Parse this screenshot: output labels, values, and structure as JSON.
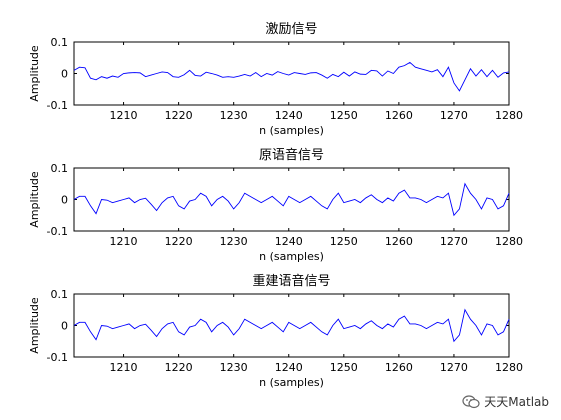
{
  "watermark": {
    "text": "天天Matlab",
    "icon": "wechat-icon"
  },
  "chart_data": [
    {
      "type": "line",
      "title": "激励信号",
      "xlabel": "n (samples)",
      "ylabel": "Amplitude",
      "xlim": [
        1201,
        1280
      ],
      "ylim": [
        -0.1,
        0.1
      ],
      "xticks": [
        1210,
        1220,
        1230,
        1240,
        1250,
        1260,
        1270,
        1280
      ],
      "xtick_labels": [
        "1210",
        "1220",
        "1230",
        "1240",
        "1250",
        "1260",
        "1270",
        "1280"
      ],
      "yticks": [
        -0.1,
        0,
        0.1
      ],
      "ytick_labels": [
        "-0.1",
        "0",
        "0.1"
      ],
      "color": "#0000ff",
      "x": [
        1201,
        1202,
        1203,
        1204,
        1205,
        1206,
        1207,
        1208,
        1209,
        1210,
        1211,
        1212,
        1213,
        1214,
        1215,
        1216,
        1217,
        1218,
        1219,
        1220,
        1221,
        1222,
        1223,
        1224,
        1225,
        1226,
        1227,
        1228,
        1229,
        1230,
        1231,
        1232,
        1233,
        1234,
        1235,
        1236,
        1237,
        1238,
        1239,
        1240,
        1241,
        1242,
        1243,
        1244,
        1245,
        1246,
        1247,
        1248,
        1249,
        1250,
        1251,
        1252,
        1253,
        1254,
        1255,
        1256,
        1257,
        1258,
        1259,
        1260,
        1261,
        1262,
        1263,
        1264,
        1265,
        1266,
        1267,
        1268,
        1269,
        1270,
        1271,
        1272,
        1273,
        1274,
        1275,
        1276,
        1277,
        1278,
        1279,
        1280
      ],
      "y": [
        0.01,
        0.02,
        0.018,
        -0.015,
        -0.02,
        -0.01,
        -0.015,
        -0.008,
        -0.012,
        0.0,
        0.002,
        0.003,
        0.002,
        -0.01,
        -0.005,
        0.0,
        0.005,
        0.003,
        -0.01,
        -0.012,
        -0.004,
        0.01,
        -0.006,
        -0.008,
        0.004,
        0.0,
        -0.005,
        -0.012,
        -0.01,
        -0.012,
        -0.008,
        -0.003,
        -0.008,
        0.003,
        -0.01,
        0.0,
        -0.005,
        0.006,
        0.0,
        -0.005,
        0.003,
        0.0,
        -0.003,
        0.002,
        0.003,
        -0.005,
        -0.015,
        -0.003,
        -0.01,
        0.004,
        -0.008,
        0.005,
        -0.002,
        -0.003,
        0.01,
        0.008,
        -0.008,
        0.008,
        0.0,
        0.02,
        0.025,
        0.035,
        0.02,
        0.015,
        0.01,
        0.005,
        0.012,
        -0.01,
        0.02,
        -0.03,
        -0.055,
        -0.02,
        0.015,
        -0.008,
        0.012,
        -0.01,
        0.01,
        -0.012,
        0.002,
        0.005
      ]
    },
    {
      "type": "line",
      "title": "原语音信号",
      "xlabel": "n (samples)",
      "ylabel": "Amplitude",
      "xlim": [
        1201,
        1280
      ],
      "ylim": [
        -0.1,
        0.1
      ],
      "xticks": [
        1210,
        1220,
        1230,
        1240,
        1250,
        1260,
        1270,
        1280
      ],
      "xtick_labels": [
        "1210",
        "1220",
        "1230",
        "1240",
        "1250",
        "1260",
        "1270",
        "1280"
      ],
      "yticks": [
        -0.1,
        0,
        0.1
      ],
      "ytick_labels": [
        "-0.1",
        "0",
        "0.1"
      ],
      "color": "#0000ff",
      "x": [
        1201,
        1202,
        1203,
        1204,
        1205,
        1206,
        1207,
        1208,
        1209,
        1210,
        1211,
        1212,
        1213,
        1214,
        1215,
        1216,
        1217,
        1218,
        1219,
        1220,
        1221,
        1222,
        1223,
        1224,
        1225,
        1226,
        1227,
        1228,
        1229,
        1230,
        1231,
        1232,
        1233,
        1234,
        1235,
        1236,
        1237,
        1238,
        1239,
        1240,
        1241,
        1242,
        1243,
        1244,
        1245,
        1246,
        1247,
        1248,
        1249,
        1250,
        1251,
        1252,
        1253,
        1254,
        1255,
        1256,
        1257,
        1258,
        1259,
        1260,
        1261,
        1262,
        1263,
        1264,
        1265,
        1266,
        1267,
        1268,
        1269,
        1270,
        1271,
        1272,
        1273,
        1274,
        1275,
        1276,
        1277,
        1278,
        1279,
        1280
      ],
      "y": [
        0.0,
        0.01,
        0.01,
        -0.02,
        -0.045,
        0.0,
        -0.002,
        -0.01,
        -0.005,
        0.0,
        0.005,
        -0.01,
        0.0,
        0.004,
        -0.015,
        -0.035,
        -0.01,
        0.005,
        0.01,
        -0.02,
        -0.03,
        -0.005,
        0.0,
        0.02,
        0.01,
        -0.02,
        0.0,
        0.01,
        -0.005,
        -0.03,
        -0.01,
        0.02,
        0.01,
        0.0,
        -0.01,
        0.0,
        0.01,
        -0.005,
        -0.02,
        0.01,
        0.0,
        -0.01,
        0.0,
        0.01,
        -0.005,
        -0.02,
        -0.03,
        0.0,
        0.02,
        -0.01,
        -0.005,
        0.0,
        -0.01,
        0.005,
        0.015,
        0.0,
        -0.01,
        0.005,
        -0.005,
        0.02,
        0.03,
        0.005,
        0.005,
        0.0,
        -0.01,
        0.0,
        0.01,
        0.005,
        0.02,
        -0.05,
        -0.03,
        0.05,
        0.02,
        0.0,
        -0.03,
        0.005,
        0.0,
        -0.03,
        -0.02,
        0.02
      ]
    },
    {
      "type": "line",
      "title": "重建语音信号",
      "xlabel": "n (samples)",
      "ylabel": "Amplitude",
      "xlim": [
        1201,
        1280
      ],
      "ylim": [
        -0.1,
        0.1
      ],
      "xticks": [
        1210,
        1220,
        1230,
        1240,
        1250,
        1260,
        1270,
        1280
      ],
      "xtick_labels": [
        "1210",
        "1220",
        "1230",
        "1240",
        "1250",
        "1260",
        "1270",
        "1280"
      ],
      "yticks": [
        -0.1,
        0,
        0.1
      ],
      "ytick_labels": [
        "-0.1",
        "0",
        "0.1"
      ],
      "color": "#0000ff",
      "x": [
        1201,
        1202,
        1203,
        1204,
        1205,
        1206,
        1207,
        1208,
        1209,
        1210,
        1211,
        1212,
        1213,
        1214,
        1215,
        1216,
        1217,
        1218,
        1219,
        1220,
        1221,
        1222,
        1223,
        1224,
        1225,
        1226,
        1227,
        1228,
        1229,
        1230,
        1231,
        1232,
        1233,
        1234,
        1235,
        1236,
        1237,
        1238,
        1239,
        1240,
        1241,
        1242,
        1243,
        1244,
        1245,
        1246,
        1247,
        1248,
        1249,
        1250,
        1251,
        1252,
        1253,
        1254,
        1255,
        1256,
        1257,
        1258,
        1259,
        1260,
        1261,
        1262,
        1263,
        1264,
        1265,
        1266,
        1267,
        1268,
        1269,
        1270,
        1271,
        1272,
        1273,
        1274,
        1275,
        1276,
        1277,
        1278,
        1279,
        1280
      ],
      "y": [
        0.0,
        0.01,
        0.01,
        -0.02,
        -0.045,
        0.0,
        -0.002,
        -0.01,
        -0.005,
        0.0,
        0.005,
        -0.01,
        0.0,
        0.004,
        -0.015,
        -0.035,
        -0.01,
        0.005,
        0.01,
        -0.02,
        -0.03,
        -0.005,
        0.0,
        0.02,
        0.01,
        -0.02,
        0.0,
        0.01,
        -0.005,
        -0.03,
        -0.01,
        0.02,
        0.01,
        0.0,
        -0.01,
        0.0,
        0.01,
        -0.005,
        -0.02,
        0.01,
        0.0,
        -0.01,
        0.0,
        0.01,
        -0.005,
        -0.02,
        -0.03,
        0.0,
        0.02,
        -0.01,
        -0.005,
        0.0,
        -0.01,
        0.005,
        0.015,
        0.0,
        -0.01,
        0.005,
        -0.005,
        0.02,
        0.03,
        0.005,
        0.005,
        0.0,
        -0.01,
        0.0,
        0.01,
        0.005,
        0.02,
        -0.05,
        -0.03,
        0.05,
        0.02,
        0.0,
        -0.03,
        0.005,
        0.0,
        -0.03,
        -0.02,
        0.02
      ]
    }
  ]
}
